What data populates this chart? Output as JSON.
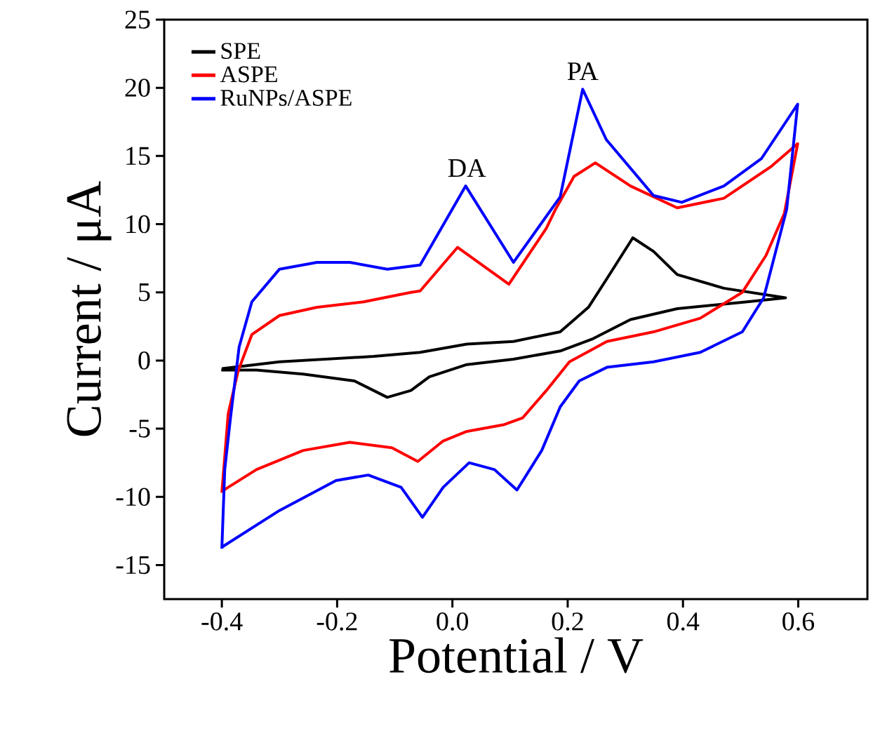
{
  "chart_data": {
    "type": "line",
    "xlabel": "Potential / V",
    "ylabel": "Current / μA",
    "xlim": [
      -0.5,
      0.72
    ],
    "ylim": [
      -17.5,
      25
    ],
    "xticks": [
      -0.4,
      -0.2,
      {
        "value": 0,
        "label": "0.0"
      },
      0.2,
      0.4,
      0.6
    ],
    "yticks": [
      -15,
      -10,
      -5,
      0,
      5,
      10,
      15,
      20,
      25
    ],
    "legend": "top left",
    "annotations": [
      {
        "text": "DA",
        "x": 0.025,
        "y": 12.8
      },
      {
        "text": "PA",
        "x": 0.226,
        "y": 19.9
      }
    ],
    "series": [
      {
        "name": "SPE",
        "color": "#000000",
        "x": [
          -0.4,
          -0.3,
          -0.137,
          -0.056,
          0.025,
          0.106,
          0.187,
          0.236,
          0.268,
          0.313,
          0.349,
          0.39,
          0.471,
          0.578,
          0.511,
          0.39,
          0.309,
          0.244,
          0.187,
          0.106,
          0.025,
          -0.04,
          -0.072,
          -0.113,
          -0.17,
          -0.259,
          -0.34,
          -0.401
        ],
        "values": [
          -0.6,
          -0.1,
          0.3,
          0.6,
          1.2,
          1.4,
          2.1,
          3.9,
          6.0,
          9.0,
          8.0,
          6.3,
          5.3,
          4.6,
          4.3,
          3.8,
          3.0,
          1.6,
          0.7,
          0.1,
          -0.3,
          -1.2,
          -2.2,
          -2.7,
          -1.5,
          -1.0,
          -0.7,
          -0.7
        ]
      },
      {
        "name": "ASPE",
        "color": "#ff0000",
        "x": [
          -0.4,
          -0.389,
          -0.372,
          -0.348,
          -0.3,
          -0.235,
          -0.154,
          -0.072,
          -0.056,
          0.009,
          0.098,
          0.163,
          0.179,
          0.211,
          0.248,
          0.309,
          0.39,
          0.471,
          0.552,
          0.599,
          0.576,
          0.544,
          0.503,
          0.43,
          0.349,
          0.268,
          0.203,
          0.163,
          0.122,
          0.09,
          0.025,
          -0.016,
          -0.06,
          -0.105,
          -0.178,
          -0.259,
          -0.34,
          -0.389,
          -0.4
        ],
        "values": [
          -9.7,
          -3.9,
          -0.8,
          1.9,
          3.3,
          3.9,
          4.3,
          5.0,
          5.1,
          8.3,
          5.6,
          9.7,
          11.1,
          13.5,
          14.5,
          12.8,
          11.2,
          11.9,
          14.2,
          15.9,
          10.8,
          7.7,
          5.0,
          3.1,
          2.1,
          1.4,
          -0.1,
          -2.2,
          -4.2,
          -4.7,
          -5.2,
          -5.9,
          -7.4,
          -6.4,
          -6.0,
          -6.6,
          -8.0,
          -9.3,
          -9.6
        ]
      },
      {
        "name": "RuNPs/ASPE",
        "color": "#0000ff",
        "x": [
          -0.4,
          -0.395,
          -0.385,
          -0.37,
          -0.348,
          -0.3,
          -0.235,
          -0.178,
          -0.113,
          -0.056,
          0.023,
          0.106,
          0.187,
          0.226,
          0.267,
          0.349,
          0.398,
          0.471,
          0.536,
          0.599,
          0.58,
          0.54,
          0.503,
          0.43,
          0.349,
          0.268,
          0.22,
          0.187,
          0.155,
          0.112,
          0.073,
          0.029,
          -0.016,
          -0.052,
          -0.089,
          -0.146,
          -0.202,
          -0.3,
          -0.393,
          -0.4
        ],
        "values": [
          -13.8,
          -8.0,
          -4.2,
          1.0,
          4.3,
          6.7,
          7.2,
          7.2,
          6.7,
          7.0,
          12.8,
          7.2,
          12.0,
          19.9,
          16.2,
          12.1,
          11.6,
          12.8,
          14.8,
          18.8,
          11.1,
          4.6,
          2.1,
          0.6,
          -0.1,
          -0.5,
          -1.5,
          -3.4,
          -6.6,
          -9.5,
          -8.0,
          -7.5,
          -9.3,
          -11.5,
          -9.3,
          -8.4,
          -8.8,
          -11.0,
          -13.5,
          -13.7
        ]
      }
    ]
  }
}
